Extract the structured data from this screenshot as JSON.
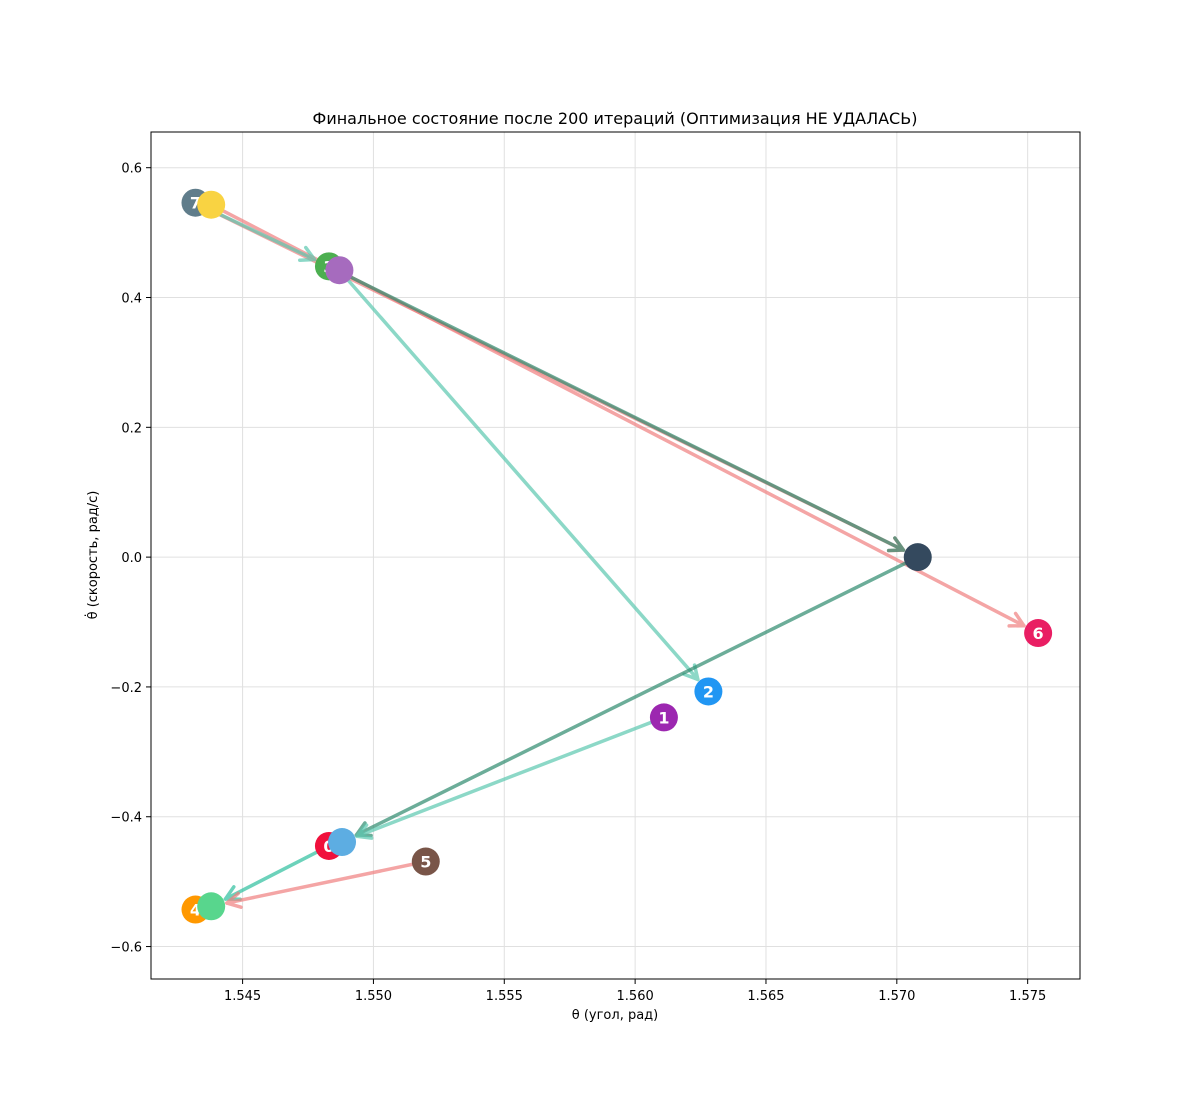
{
  "chart_data": {
    "type": "scatter",
    "title": "Финальное состояние после 200 итераций (Оптимизация НЕ УДАЛАСЬ)",
    "xlabel": "θ (угол, рад)",
    "ylabel": "θ̇ (скорость, рад/с)",
    "xlim": [
      1.5415,
      1.577
    ],
    "ylim": [
      -0.65,
      0.655
    ],
    "xticks": [
      {
        "value": 1.545,
        "label": "1.545"
      },
      {
        "value": 1.55,
        "label": "1.550"
      },
      {
        "value": 1.555,
        "label": "1.555"
      },
      {
        "value": 1.56,
        "label": "1.560"
      },
      {
        "value": 1.565,
        "label": "1.565"
      },
      {
        "value": 1.57,
        "label": "1.570"
      },
      {
        "value": 1.575,
        "label": "1.575"
      }
    ],
    "yticks": [
      {
        "value": -0.6,
        "label": "−0.6"
      },
      {
        "value": -0.4,
        "label": "−0.4"
      },
      {
        "value": -0.2,
        "label": "−0.2"
      },
      {
        "value": 0.0,
        "label": "0.0"
      },
      {
        "value": 0.2,
        "label": "0.2"
      },
      {
        "value": 0.4,
        "label": "0.4"
      },
      {
        "value": 0.6,
        "label": "0.6"
      }
    ],
    "grid": true,
    "nodes": [
      {
        "id": "7",
        "label": "7",
        "x": 1.5432,
        "y": 0.546,
        "color": "#607d8b"
      },
      {
        "id": "7b",
        "label": "",
        "x": 1.5438,
        "y": 0.543,
        "color": "#f9d342"
      },
      {
        "id": "3",
        "label": "3",
        "x": 1.5483,
        "y": 0.448,
        "color": "#4caf50"
      },
      {
        "id": "3b",
        "label": "",
        "x": 1.5487,
        "y": 0.442,
        "color": "#a66bbe"
      },
      {
        "id": "c",
        "label": "",
        "x": 1.5708,
        "y": 0.0,
        "color": "#34495e"
      },
      {
        "id": "6",
        "label": "6",
        "x": 1.5754,
        "y": -0.117,
        "color": "#e91e63"
      },
      {
        "id": "2",
        "label": "2",
        "x": 1.5628,
        "y": -0.207,
        "color": "#2196f3"
      },
      {
        "id": "1",
        "label": "1",
        "x": 1.5611,
        "y": -0.247,
        "color": "#9c27b0"
      },
      {
        "id": "0",
        "label": "0",
        "x": 1.5483,
        "y": -0.445,
        "color": "#f0103c"
      },
      {
        "id": "0b",
        "label": "",
        "x": 1.5488,
        "y": -0.439,
        "color": "#5dade2"
      },
      {
        "id": "5",
        "label": "5",
        "x": 1.552,
        "y": -0.469,
        "color": "#795548"
      },
      {
        "id": "4",
        "label": "4",
        "x": 1.5432,
        "y": -0.543,
        "color": "#ff9800"
      },
      {
        "id": "4b",
        "label": "",
        "x": 1.5438,
        "y": -0.538,
        "color": "#58d68d"
      }
    ],
    "arrows": [
      {
        "from": "7",
        "to": "c",
        "color": "#f08080"
      },
      {
        "from": "7b",
        "to": "6",
        "color": "#f08080"
      },
      {
        "from": "7",
        "to": "3",
        "color": "#5cc8b0"
      },
      {
        "from": "3",
        "to": "c",
        "color": "#2e8b6e"
      },
      {
        "from": "3b",
        "to": "2",
        "color": "#5cc8b0"
      },
      {
        "from": "c",
        "to": "0b",
        "color": "#2e8b6e"
      },
      {
        "from": "1",
        "to": "0b",
        "color": "#5cc8b0"
      },
      {
        "from": "0",
        "to": "4b",
        "color": "#2ebf9f"
      },
      {
        "from": "5",
        "to": "4b",
        "color": "#f08080"
      }
    ]
  }
}
